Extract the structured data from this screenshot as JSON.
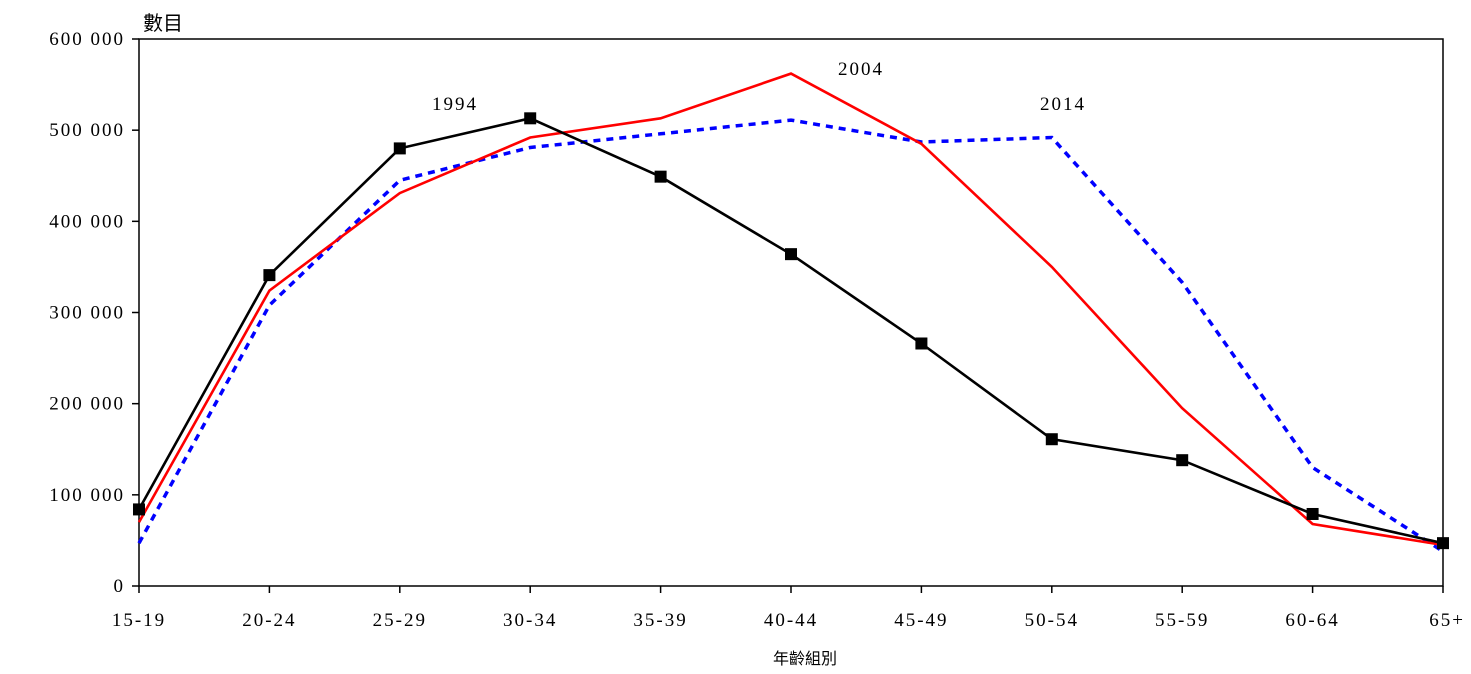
{
  "chart_data": {
    "type": "line",
    "ylabel": "數目",
    "xlabel": "年齡組別",
    "categories": [
      "15-19",
      "20-24",
      "25-29",
      "30-34",
      "35-39",
      "40-44",
      "45-49",
      "50-54",
      "55-59",
      "60-64",
      "65+"
    ],
    "ylim": [
      0,
      600000
    ],
    "yticks": [
      0,
      100000,
      200000,
      300000,
      400000,
      500000,
      600000
    ],
    "ytick_labels": [
      "0",
      "100 000",
      "200 000",
      "300 000",
      "400 000",
      "500 000",
      "600 000"
    ],
    "grid": false,
    "series": [
      {
        "name": "1994",
        "color": "#000000",
        "style": "solid",
        "marker": "square",
        "values": [
          84000,
          341000,
          480000,
          513000,
          449000,
          364000,
          266000,
          161000,
          138000,
          79000,
          47000
        ]
      },
      {
        "name": "2004",
        "color": "#ff0000",
        "style": "solid",
        "marker": "none",
        "values": [
          70000,
          324000,
          431000,
          492000,
          513000,
          562000,
          485000,
          350000,
          195000,
          68000,
          45000
        ]
      },
      {
        "name": "2014",
        "color": "#0000ff",
        "style": "dotted",
        "marker": "none",
        "values": [
          47000,
          308000,
          445000,
          481000,
          496000,
          511000,
          487000,
          492000,
          333000,
          130000,
          38000
        ]
      }
    ]
  }
}
